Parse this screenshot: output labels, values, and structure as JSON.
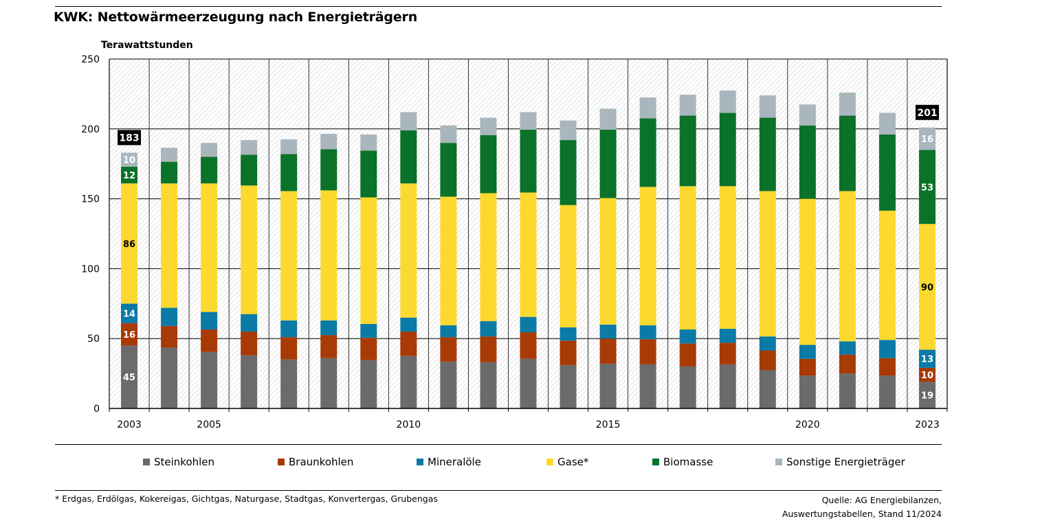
{
  "title": "KWK: Nettowärmeerzeugung nach Energieträgern",
  "footnote": "* Erdgas, Erdölgas, Kokereigas, Gichtgas, Naturgase, Stadtgas, Konvertergas, Grubengas",
  "source_line1": "Quelle: AG Energiebilanzen,",
  "source_line2": "Auswertungstabellen, Stand 11/2024",
  "colors": {
    "Steinkohlen": "#6b6b6b",
    "Braunkohlen": "#a83a06",
    "Mineralöle": "#0a7aa6",
    "Gase*": "#fcd92f",
    "Biomasse": "#0a7229",
    "Sonstige Energieträger": "#aab6bd"
  },
  "chart_data": {
    "type": "bar",
    "stacked": true,
    "ylabel": "Terawattstunden",
    "ylim": [
      0,
      250
    ],
    "yticks": [
      0,
      50,
      100,
      150,
      200,
      250
    ],
    "grid": true,
    "legend_position": "bottom",
    "categories": [
      "2003",
      "2004",
      "2005",
      "2006",
      "2007",
      "2008",
      "2009",
      "2010",
      "2011",
      "2012",
      "2013",
      "2014",
      "2015",
      "2016",
      "2017",
      "2018",
      "2019",
      "2020",
      "2021",
      "2022",
      "2023"
    ],
    "xtick_labels": [
      "2003",
      "",
      "2005",
      "",
      "",
      "",
      "",
      "2010",
      "",
      "",
      "",
      "",
      "2015",
      "",
      "",
      "",
      "",
      "2020",
      "",
      "",
      "2023"
    ],
    "series": [
      {
        "name": "Steinkohlen",
        "values": [
          45,
          43.5,
          40.5,
          38,
          35,
          36,
          34.5,
          37.5,
          33.5,
          33,
          35.5,
          31,
          32,
          31.5,
          30,
          31.5,
          27.5,
          23.5,
          25,
          23.5,
          19
        ]
      },
      {
        "name": "Braunkohlen",
        "values": [
          16,
          15.5,
          16,
          17,
          16,
          16.5,
          16,
          17.5,
          17.5,
          18.5,
          19,
          17.5,
          18,
          18,
          16.5,
          15.5,
          14,
          12,
          13.5,
          12.5,
          10
        ]
      },
      {
        "name": "Mineralöle",
        "values": [
          14,
          13,
          12.5,
          12.5,
          12,
          10.5,
          10,
          10,
          8.5,
          11,
          11,
          9.5,
          10,
          10,
          10,
          10,
          10,
          10,
          9.5,
          13,
          13
        ]
      },
      {
        "name": "Gase*",
        "values": [
          86,
          89,
          92,
          92,
          92.5,
          93,
          90.5,
          96,
          92,
          91.5,
          89,
          87.5,
          90.5,
          99,
          102.5,
          102,
          104,
          104.5,
          107.5,
          92.5,
          90
        ]
      },
      {
        "name": "Biomasse",
        "values": [
          12,
          15.5,
          19,
          22,
          26.5,
          29.5,
          33.5,
          38,
          38.5,
          41.5,
          45,
          46.5,
          49,
          49,
          50.5,
          52.5,
          52.5,
          52.5,
          54,
          54.5,
          53
        ]
      },
      {
        "name": "Sonstige Energieträger",
        "values": [
          10,
          10,
          10,
          10.5,
          10.5,
          11,
          11.5,
          13,
          12.5,
          12.5,
          12.5,
          14,
          15,
          15,
          15,
          16,
          16,
          15,
          16.5,
          15.5,
          16
        ]
      }
    ],
    "data_labels": {
      "2003": {
        "Steinkohlen": "45",
        "Braunkohlen": "16",
        "Mineralöle": "14",
        "Gase*": "86",
        "Biomasse": "12",
        "Sonstige Energieträger": "10"
      },
      "2023": {
        "Steinkohlen": "19",
        "Braunkohlen": "10",
        "Mineralöle": "13",
        "Gase*": "90",
        "Biomasse": "53",
        "Sonstige Energieträger": "16"
      }
    },
    "total_labels": {
      "2003": "183",
      "2023": "201"
    }
  }
}
